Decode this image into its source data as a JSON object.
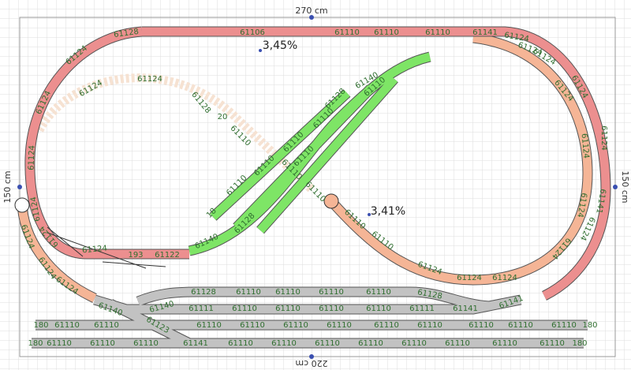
{
  "dimensions": {
    "top": "270 cm",
    "left": "150 cm",
    "right": "150 cm",
    "bottom": "220 cm"
  },
  "grades": [
    "3,45%",
    "3,41%"
  ],
  "track_labels": [
    "61128",
    "61106",
    "61110",
    "61110",
    "61110",
    "61141",
    "61124",
    "61124",
    "61124",
    "61124",
    "61124",
    "61124",
    "61124",
    "193",
    "61122",
    "61124",
    "61124",
    "61124",
    "61141",
    "61124",
    "61124",
    "61124",
    "61124",
    "61124",
    "61124",
    "61124",
    "61124",
    "61124",
    "61110",
    "61110",
    "61110",
    "61124",
    "61124",
    "61124",
    "61110",
    "61110",
    "61110",
    "61110",
    "61110",
    "61128",
    "61110",
    "61140",
    "61128",
    "61140",
    "18",
    "61124",
    "61124",
    "61128",
    "20",
    "61110",
    "61110",
    "61128",
    "61110",
    "61110",
    "61110",
    "61110",
    "61128",
    "61140",
    "61140",
    "61111",
    "61110",
    "61110",
    "61110",
    "61110",
    "61111",
    "61141",
    "61141",
    "180",
    "61110",
    "61110",
    "61123",
    "61110",
    "61110",
    "61110",
    "61110",
    "61110",
    "61110",
    "61110",
    "61110",
    "61110",
    "180",
    "180",
    "61110",
    "61110",
    "61110",
    "61141",
    "61110",
    "61110",
    "61110",
    "61110",
    "61110",
    "61110",
    "61110",
    "61110",
    "180"
  ]
}
